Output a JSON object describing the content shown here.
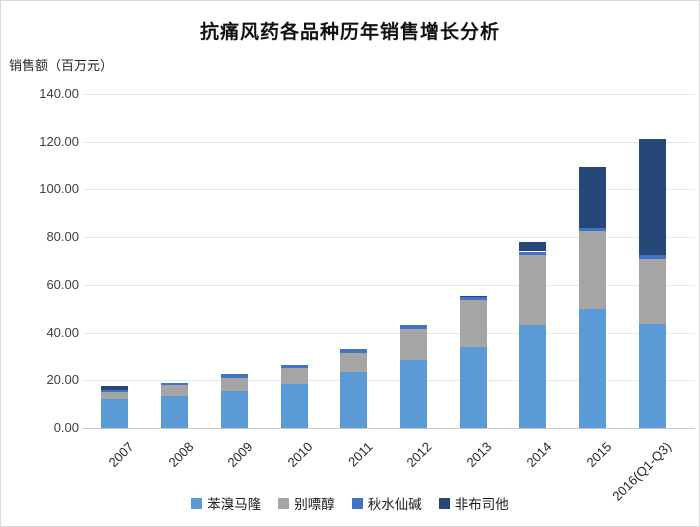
{
  "chart_data": {
    "type": "bar",
    "stacked": true,
    "title": "抗痛风药各品种历年销售增长分析",
    "ylabel": "销售额（百万元）",
    "xlabel": "",
    "categories": [
      "2007",
      "2008",
      "2009",
      "2010",
      "2011",
      "2012",
      "2013",
      "2014",
      "2015",
      "2016(Q1-Q3)"
    ],
    "series": [
      {
        "name": "苯溴马隆",
        "color": "#5B9BD5",
        "values": [
          12.0,
          13.5,
          15.5,
          18.5,
          23.5,
          28.5,
          34.0,
          43.0,
          50.0,
          43.5
        ]
      },
      {
        "name": "别嘌醇",
        "color": "#A5A5A5",
        "values": [
          3.0,
          4.5,
          5.5,
          6.5,
          8.0,
          13.0,
          19.5,
          29.5,
          32.5,
          27.5
        ]
      },
      {
        "name": "秋水仙碱",
        "color": "#4472C4",
        "values": [
          1.0,
          1.0,
          1.5,
          1.5,
          1.5,
          1.5,
          1.5,
          1.5,
          1.5,
          1.5
        ]
      },
      {
        "name": "非布司他",
        "color": "#264879",
        "values": [
          1.5,
          0.0,
          0.0,
          0.0,
          0.0,
          0.0,
          0.5,
          4.0,
          25.5,
          48.5
        ]
      }
    ],
    "totals": [
      17.5,
      19.0,
      22.5,
      26.5,
      33.0,
      43.0,
      55.5,
      78.0,
      109.5,
      121.0
    ],
    "ylim": [
      0,
      140
    ],
    "ytick_step": 20,
    "ytick_labels": [
      "0.00",
      "20.00",
      "40.00",
      "60.00",
      "80.00",
      "100.00",
      "120.00",
      "140.00"
    ],
    "grid": true,
    "legend_position": "bottom"
  }
}
